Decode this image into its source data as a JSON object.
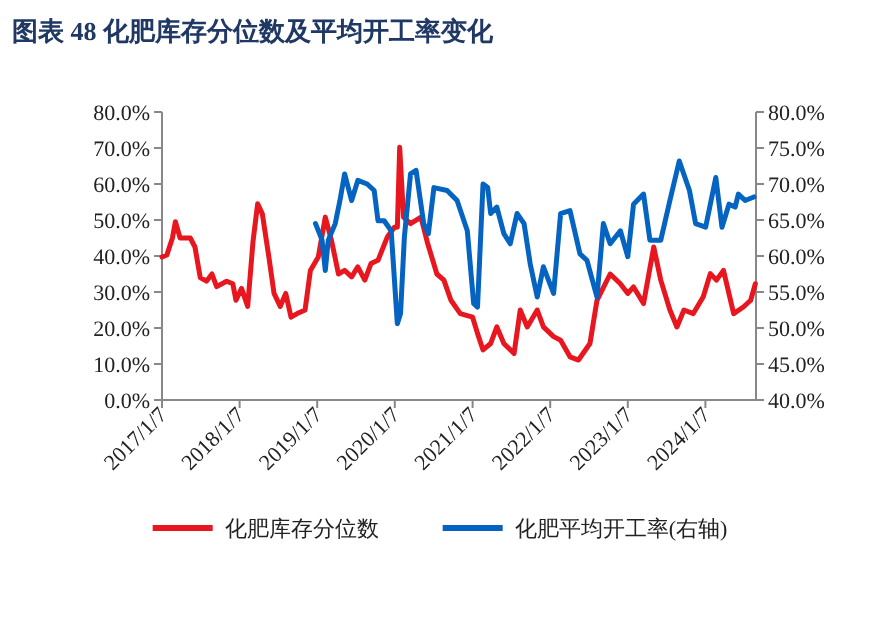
{
  "chart_data": {
    "type": "line",
    "title": "图表 48 化肥库存分位数及平均开工率变化",
    "xlim": [
      "2017-01-07",
      "2024-09-01"
    ],
    "xticks": [
      {
        "value": "2017-01-07",
        "label": "2017/1/7"
      },
      {
        "value": "2018-01-07",
        "label": "2018/1/7"
      },
      {
        "value": "2019-01-07",
        "label": "2019/1/7"
      },
      {
        "value": "2020-01-07",
        "label": "2020/1/7"
      },
      {
        "value": "2021-01-07",
        "label": "2021/1/7"
      },
      {
        "value": "2022-01-07",
        "label": "2022/1/7"
      },
      {
        "value": "2023-01-07",
        "label": "2023/1/7"
      },
      {
        "value": "2024-01-07",
        "label": "2024/1/7"
      }
    ],
    "ylim": [
      0,
      80
    ],
    "yticks": [
      {
        "value": 0,
        "label": "0.0%"
      },
      {
        "value": 10,
        "label": "10.0%"
      },
      {
        "value": 20,
        "label": "20.0%"
      },
      {
        "value": 30,
        "label": "30.0%"
      },
      {
        "value": 40,
        "label": "40.0%"
      },
      {
        "value": 50,
        "label": "50.0%"
      },
      {
        "value": 60,
        "label": "60.0%"
      },
      {
        "value": 70,
        "label": "70.0%"
      },
      {
        "value": 80,
        "label": "80.0%"
      }
    ],
    "y2lim": [
      40,
      80
    ],
    "y2ticks": [
      {
        "value": 40,
        "label": "40.0%"
      },
      {
        "value": 45,
        "label": "45.0%"
      },
      {
        "value": 50,
        "label": "50.0%"
      },
      {
        "value": 55,
        "label": "55.0%"
      },
      {
        "value": 60,
        "label": "60.0%"
      },
      {
        "value": 65,
        "label": "65.0%"
      },
      {
        "value": 70,
        "label": "70.0%"
      },
      {
        "value": 75,
        "label": "75.0%"
      },
      {
        "value": 80,
        "label": "80.0%"
      }
    ],
    "legend": "bottom",
    "series": [
      {
        "name": "化肥库存分位数",
        "color": "#e8161f",
        "x": [
          "2017-01-07",
          "2017-01-30",
          "2017-02-25",
          "2017-03-11",
          "2017-04-02",
          "2017-05-20",
          "2017-06-11",
          "2017-07-06",
          "2017-08-04",
          "2017-08-30",
          "2017-09-21",
          "2017-11-07",
          "2017-12-06",
          "2017-12-21",
          "2018-01-16",
          "2018-02-14",
          "2018-03-11",
          "2018-04-02",
          "2018-04-24",
          "2018-05-27",
          "2018-06-18",
          "2018-07-17",
          "2018-08-12",
          "2018-09-06",
          "2018-10-05",
          "2018-11-11",
          "2018-12-06",
          "2019-01-12",
          "2019-02-14",
          "2019-03-15",
          "2019-04-17",
          "2019-05-16",
          "2019-06-18",
          "2019-07-17",
          "2019-08-19",
          "2019-09-17",
          "2019-10-20",
          "2019-12-03",
          "2020-01-05",
          "2020-01-19",
          "2020-01-30",
          "2020-02-17",
          "2020-03-21",
          "2020-05-09",
          "2020-06-10",
          "2020-07-23",
          "2020-08-25",
          "2020-09-27",
          "2020-11-10",
          "2021-01-07",
          "2021-01-30",
          "2021-02-25",
          "2021-04-02",
          "2021-05-01",
          "2021-06-03",
          "2021-07-21",
          "2021-08-19",
          "2021-09-21",
          "2021-11-07",
          "2021-12-06",
          "2022-01-23",
          "2022-02-25",
          "2022-04-10",
          "2022-05-20",
          "2022-07-13",
          "2022-08-15",
          "2022-10-16",
          "2022-12-03",
          "2023-01-07",
          "2023-02-03",
          "2023-03-22",
          "2023-05-09",
          "2023-06-11",
          "2023-07-24",
          "2023-08-26",
          "2023-09-28",
          "2023-11-11",
          "2023-12-28",
          "2024-01-30",
          "2024-02-28",
          "2024-04-01",
          "2024-05-19",
          "2024-07-05",
          "2024-08-07",
          "2024-08-29"
        ],
        "values": [
          39.7,
          40.3,
          45,
          49.5,
          45,
          45,
          42.5,
          34,
          33,
          35,
          31.5,
          33,
          32.3,
          27.7,
          31,
          26,
          44,
          54.5,
          51.7,
          38.8,
          29.6,
          26,
          29.6,
          23,
          24,
          25,
          36,
          39.7,
          50.8,
          44.4,
          35,
          36,
          34.2,
          37,
          33.3,
          37.9,
          38.8,
          45.3,
          48,
          48,
          70.2,
          50.8,
          49,
          50.8,
          43.4,
          35,
          33.3,
          27.7,
          24,
          23,
          18.5,
          13.9,
          15.7,
          20.3,
          15.7,
          12.9,
          25,
          20.3,
          25,
          20.3,
          17.6,
          16.6,
          12,
          11.1,
          15.7,
          27.7,
          35,
          32.3,
          29.6,
          31.4,
          26.8,
          42.5,
          33.3,
          25,
          20.3,
          25,
          24,
          28.7,
          35.1,
          33.3,
          36,
          24,
          25.9,
          27.7,
          32.3
        ]
      },
      {
        "name": "化肥平均开工率(右轴)",
        "color": "#0563c1",
        "axis": "y2",
        "x": [
          "2018-12-30",
          "2019-01-30",
          "2019-02-14",
          "2019-02-28",
          "2019-04-02",
          "2019-04-24",
          "2019-05-16",
          "2019-06-18",
          "2019-07-17",
          "2019-08-30",
          "2019-10-02",
          "2019-10-20",
          "2019-11-18",
          "2019-12-21",
          "2020-01-19",
          "2020-02-03",
          "2020-02-21",
          "2020-03-21",
          "2020-04-16",
          "2020-05-22",
          "2020-06-13",
          "2020-07-09",
          "2020-09-09",
          "2020-10-26",
          "2020-12-13",
          "2021-01-12",
          "2021-01-30",
          "2021-02-25",
          "2021-03-19",
          "2021-04-02",
          "2021-05-01",
          "2021-06-03",
          "2021-07-03",
          "2021-08-04",
          "2021-09-06",
          "2021-10-05",
          "2021-11-07",
          "2021-12-06",
          "2022-01-23",
          "2022-02-25",
          "2022-04-10",
          "2022-05-27",
          "2022-06-29",
          "2022-08-15",
          "2022-09-14",
          "2022-10-16",
          "2022-12-03",
          "2023-01-07",
          "2023-02-03",
          "2023-03-22",
          "2023-04-21",
          "2023-06-11",
          "2023-07-24",
          "2023-09-06",
          "2023-10-24",
          "2023-11-22",
          "2024-01-08",
          "2024-02-25",
          "2024-03-25",
          "2024-04-27",
          "2024-05-26",
          "2024-06-10",
          "2024-07-12",
          "2024-08-22"
        ],
        "values": [
          64.5,
          62.2,
          58,
          62.2,
          64.5,
          67.7,
          71.4,
          67.7,
          70.5,
          70,
          69.1,
          64.9,
          64.9,
          63.5,
          50.6,
          52,
          62.6,
          71.4,
          71.9,
          64.5,
          63.1,
          69.5,
          69.1,
          67.7,
          63.5,
          53.4,
          52.9,
          70,
          69.5,
          65.9,
          66.8,
          63.1,
          61.7,
          65.9,
          64.5,
          58.9,
          54.3,
          58.5,
          54.8,
          65.9,
          66.3,
          60.3,
          59.4,
          54.3,
          64.5,
          61.7,
          63.5,
          59.9,
          67.2,
          68.6,
          62.2,
          62.2,
          67.7,
          73.2,
          69.1,
          64.5,
          64,
          70.9,
          64,
          67.2,
          66.8,
          68.6,
          67.7,
          68.2
        ]
      }
    ]
  }
}
